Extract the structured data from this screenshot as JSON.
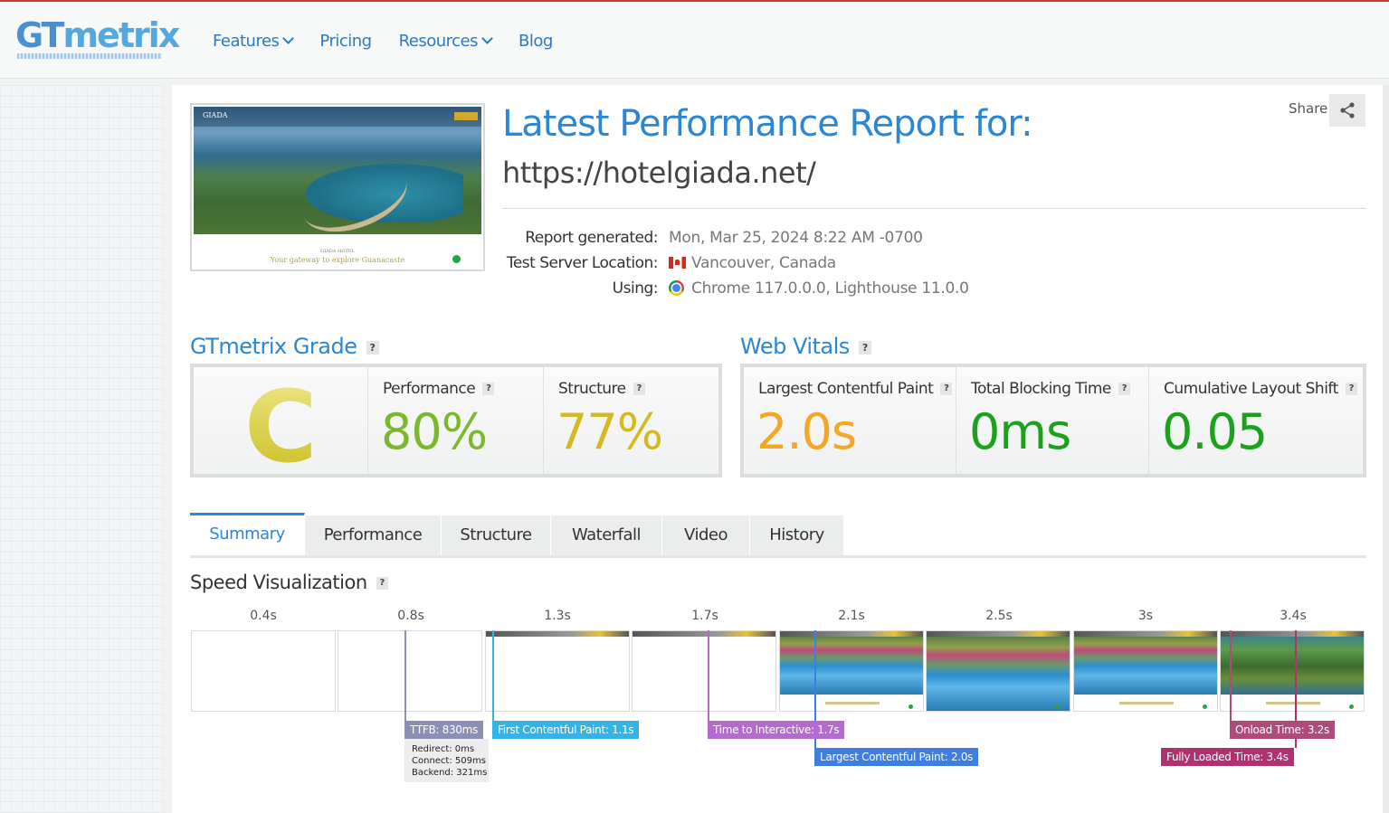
{
  "header": {
    "logo_gt": "GT",
    "logo_metrix": "metrix",
    "nav": [
      {
        "label": "Features",
        "has_dropdown": true
      },
      {
        "label": "Pricing",
        "has_dropdown": false
      },
      {
        "label": "Resources",
        "has_dropdown": true
      },
      {
        "label": "Blog",
        "has_dropdown": false
      }
    ]
  },
  "report": {
    "title": "Latest Performance Report for:",
    "url": "https://hotelgiada.net/",
    "share_label": "Share",
    "thumbnail": {
      "brand": "GIADA",
      "caption_small": "GIADA HOTEL",
      "caption": "Your gateway to explore Guanacaste"
    },
    "meta": [
      {
        "label": "Report generated:",
        "value": "Mon, Mar 25, 2024 8:22 AM -0700",
        "icon": ""
      },
      {
        "label": "Test Server Location:",
        "value": "Vancouver, Canada",
        "icon": "canada-flag-icon"
      },
      {
        "label": "Using:",
        "value": "Chrome 117.0.0.0, Lighthouse 11.0.0",
        "icon": "chrome-icon"
      }
    ]
  },
  "grade": {
    "title": "GTmetrix Grade",
    "letter": "C",
    "performance_label": "Performance",
    "performance_value": "80%",
    "structure_label": "Structure",
    "structure_value": "77%"
  },
  "vitals": {
    "title": "Web Vitals",
    "lcp_label": "Largest Contentful Paint",
    "lcp_value": "2.0s",
    "tbt_label": "Total Blocking Time",
    "tbt_value": "0ms",
    "cls_label": "Cumulative Layout Shift",
    "cls_value": "0.05"
  },
  "colors": {
    "accent": "#2b86d4",
    "performance": "#7cb82f",
    "structure": "#d4b923",
    "lcp": "#f5a623",
    "tbt": "#1aa21a",
    "cls": "#1aa21a"
  },
  "tabs": [
    "Summary",
    "Performance",
    "Structure",
    "Waterfall",
    "Video",
    "History"
  ],
  "active_tab": "Summary",
  "speed": {
    "title": "Speed Visualization",
    "ticks": [
      "0.4s",
      "0.8s",
      "1.3s",
      "1.7s",
      "2.1s",
      "2.5s",
      "3s",
      "3.4s"
    ],
    "markers": {
      "ttfb": "TTFB: 830ms",
      "fcp": "First Contentful Paint: 1.1s",
      "tti": "Time to Interactive: 1.7s",
      "lcp": "Largest Contentful Paint: 2.0s",
      "onload": "Onload Time: 3.2s",
      "fully": "Fully Loaded Time: 3.4s"
    },
    "ttfb_details": [
      "Redirect: 0ms",
      "Connect: 509ms",
      "Backend: 321ms"
    ],
    "help": "?"
  }
}
